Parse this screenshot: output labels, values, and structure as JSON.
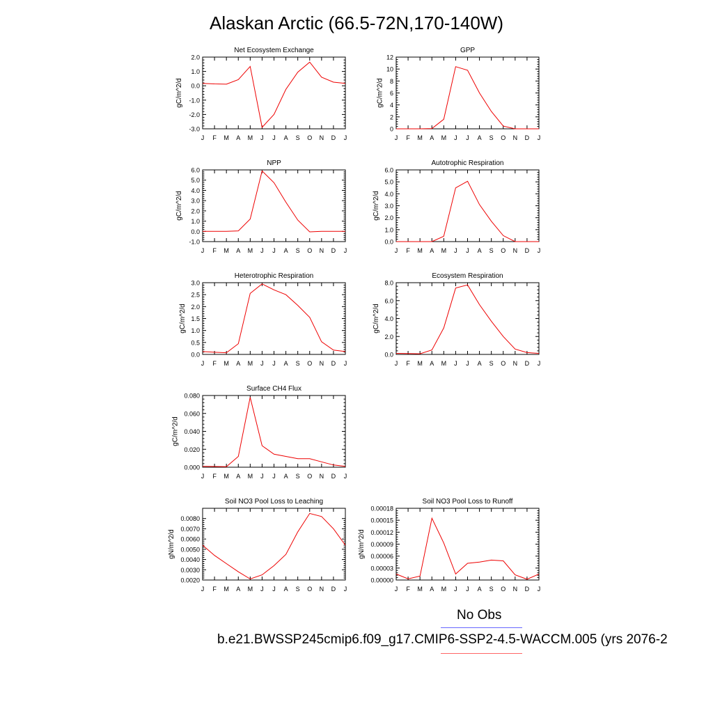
{
  "title": "Alaskan Arctic (66.5-72N,170-140W)",
  "legend": {
    "obs_label": "No Obs",
    "obs_color": "#6666ff",
    "case_label": "b.e21.BWSSP245cmip6.f09_g17.CMIP6-SSP2-4.5-WACCM.005 (yrs 2076-2",
    "case_color": "#ff6666"
  },
  "line_color": "#ee0000",
  "chart_data": [
    {
      "type": "line",
      "title": "Net Ecosystem Exchange",
      "ylabel": "gC/m^2/d",
      "categories": [
        "J",
        "F",
        "M",
        "A",
        "M",
        "J",
        "J",
        "A",
        "S",
        "O",
        "N",
        "D",
        "J"
      ],
      "ylim": [
        -3.0,
        2.0
      ],
      "yticks": [
        -3.0,
        -2.0,
        -1.0,
        0.0,
        1.0,
        2.0
      ],
      "ytick_labels": [
        "-3.0",
        "-2.0",
        "-1.0",
        "0.0",
        "1.0",
        "2.0"
      ],
      "values": [
        0.17,
        0.13,
        0.11,
        0.43,
        1.35,
        -2.9,
        -2.0,
        -0.25,
        0.95,
        1.65,
        0.6,
        0.25,
        0.17
      ]
    },
    {
      "type": "line",
      "title": "GPP",
      "ylabel": "gC/m^2/d",
      "categories": [
        "J",
        "F",
        "M",
        "A",
        "M",
        "J",
        "J",
        "A",
        "S",
        "O",
        "N",
        "D",
        "J"
      ],
      "ylim": [
        0,
        12
      ],
      "yticks": [
        0,
        2,
        4,
        6,
        8,
        10,
        12
      ],
      "ytick_labels": [
        "0",
        "2",
        "4",
        "6",
        "8",
        "10",
        "12"
      ],
      "values": [
        0.0,
        0.0,
        0.0,
        0.05,
        1.6,
        10.4,
        9.8,
        6.0,
        2.9,
        0.45,
        0.0,
        0.0,
        0.0
      ]
    },
    {
      "type": "line",
      "title": "NPP",
      "ylabel": "gC/m^2/d",
      "categories": [
        "J",
        "F",
        "M",
        "A",
        "M",
        "J",
        "J",
        "A",
        "S",
        "O",
        "N",
        "D",
        "J"
      ],
      "ylim": [
        -1.0,
        6.0
      ],
      "yticks": [
        -1.0,
        0.0,
        1.0,
        2.0,
        3.0,
        4.0,
        5.0,
        6.0
      ],
      "ytick_labels": [
        "-1.0",
        "0.0",
        "1.0",
        "2.0",
        "3.0",
        "4.0",
        "5.0",
        "6.0"
      ],
      "values": [
        0.0,
        0.0,
        0.0,
        0.05,
        1.2,
        5.9,
        4.75,
        2.85,
        1.1,
        -0.05,
        0.0,
        0.0,
        0.0
      ]
    },
    {
      "type": "line",
      "title": "Autotrophic Respiration",
      "ylabel": "gC/m^2/d",
      "categories": [
        "J",
        "F",
        "M",
        "A",
        "M",
        "J",
        "J",
        "A",
        "S",
        "O",
        "N",
        "D",
        "J"
      ],
      "ylim": [
        0.0,
        6.0
      ],
      "yticks": [
        0.0,
        1.0,
        2.0,
        3.0,
        4.0,
        5.0,
        6.0
      ],
      "ytick_labels": [
        "0.0",
        "1.0",
        "2.0",
        "3.0",
        "4.0",
        "5.0",
        "6.0"
      ],
      "values": [
        0.0,
        0.0,
        0.0,
        0.0,
        0.45,
        4.5,
        5.05,
        3.1,
        1.7,
        0.5,
        0.0,
        0.0,
        0.0
      ]
    },
    {
      "type": "line",
      "title": "Heterotrophic Respiration",
      "ylabel": "gC/m^2/d",
      "categories": [
        "J",
        "F",
        "M",
        "A",
        "M",
        "J",
        "J",
        "A",
        "S",
        "O",
        "N",
        "D",
        "J"
      ],
      "ylim": [
        0.0,
        3.0
      ],
      "yticks": [
        0.0,
        0.5,
        1.0,
        1.5,
        2.0,
        2.5,
        3.0
      ],
      "ytick_labels": [
        "0.0",
        "0.5",
        "1.0",
        "1.5",
        "2.0",
        "2.5",
        "3.0"
      ],
      "values": [
        0.12,
        0.09,
        0.07,
        0.45,
        2.55,
        2.95,
        2.7,
        2.5,
        2.05,
        1.55,
        0.53,
        0.18,
        0.12
      ]
    },
    {
      "type": "line",
      "title": "Ecosystem Respiration",
      "ylabel": "gC/m^2/d",
      "categories": [
        "J",
        "F",
        "M",
        "A",
        "M",
        "J",
        "J",
        "A",
        "S",
        "O",
        "N",
        "D",
        "J"
      ],
      "ylim": [
        0.0,
        8.0
      ],
      "yticks": [
        0.0,
        2.0,
        4.0,
        6.0,
        8.0
      ],
      "ytick_labels": [
        "0.0",
        "2.0",
        "4.0",
        "6.0",
        "8.0"
      ],
      "values": [
        0.12,
        0.09,
        0.07,
        0.5,
        2.95,
        7.4,
        7.75,
        5.55,
        3.7,
        2.0,
        0.6,
        0.2,
        0.12
      ]
    },
    {
      "type": "line",
      "title": "Surface CH4 Flux",
      "ylabel": "gC/m^2/d",
      "categories": [
        "J",
        "F",
        "M",
        "A",
        "M",
        "J",
        "J",
        "A",
        "S",
        "O",
        "N",
        "D",
        "J"
      ],
      "ylim": [
        0.0,
        0.08
      ],
      "yticks": [
        0.0,
        0.02,
        0.04,
        0.06,
        0.08
      ],
      "ytick_labels": [
        "0.000",
        "0.020",
        "0.040",
        "0.060",
        "0.080"
      ],
      "values": [
        0.001,
        0.0008,
        0.0006,
        0.012,
        0.078,
        0.024,
        0.0145,
        0.012,
        0.0095,
        0.0095,
        0.006,
        0.0025,
        0.001
      ]
    },
    {
      "type": "line",
      "title": "Soil NO3 Pool Loss to Leaching",
      "ylabel": "gN/m^2/d",
      "categories": [
        "J",
        "F",
        "M",
        "A",
        "M",
        "J",
        "J",
        "A",
        "S",
        "O",
        "N",
        "D",
        "J"
      ],
      "ylim": [
        0.002,
        0.009
      ],
      "yticks": [
        0.002,
        0.003,
        0.004,
        0.005,
        0.006,
        0.007,
        0.008
      ],
      "ytick_labels": [
        "0.0020",
        "0.0030",
        "0.0040",
        "0.0050",
        "0.0060",
        "0.0070",
        "0.0080"
      ],
      "values": [
        0.0054,
        0.0044,
        0.0036,
        0.0028,
        0.0021,
        0.0025,
        0.0034,
        0.0045,
        0.0067,
        0.0085,
        0.0082,
        0.007,
        0.0054
      ]
    },
    {
      "type": "line",
      "title": "Soil NO3 Pool Loss to Runoff",
      "ylabel": "gN/m^2/d",
      "categories": [
        "J",
        "F",
        "M",
        "A",
        "M",
        "J",
        "J",
        "A",
        "S",
        "O",
        "N",
        "D",
        "J"
      ],
      "ylim": [
        0.0,
        0.00018
      ],
      "yticks": [
        0.0,
        3e-05,
        6e-05,
        9e-05,
        0.00012,
        0.00015,
        0.00018
      ],
      "ytick_labels": [
        "0.00000",
        "0.00003",
        "0.00006",
        "0.00009",
        "0.00012",
        "0.00015",
        "0.00018"
      ],
      "values": [
        1.5e-05,
        3e-06,
        1e-05,
        0.000155,
        9.3e-05,
        1.5e-05,
        4.2e-05,
        4.5e-05,
        5e-05,
        4.8e-05,
        1.3e-05,
        2e-06,
        1.5e-05
      ]
    }
  ]
}
